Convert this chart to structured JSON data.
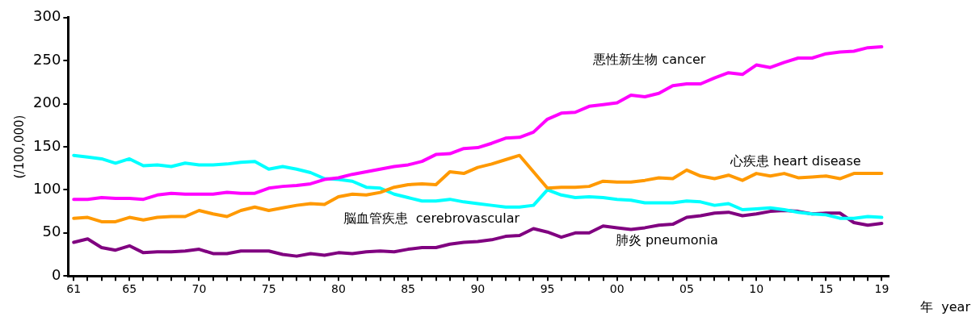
{
  "chart_data": {
    "type": "line",
    "xlabel": "年  year",
    "ylabel": "(/100,000)",
    "x": [
      1961,
      1962,
      1963,
      1964,
      1965,
      1966,
      1967,
      1968,
      1969,
      1970,
      1971,
      1972,
      1973,
      1974,
      1975,
      1976,
      1977,
      1978,
      1979,
      1980,
      1981,
      1982,
      1983,
      1984,
      1985,
      1986,
      1987,
      1988,
      1989,
      1990,
      1991,
      1992,
      1993,
      1994,
      1995,
      1996,
      1997,
      1998,
      1999,
      2000,
      2001,
      2002,
      2003,
      2004,
      2005,
      2006,
      2007,
      2008,
      2009,
      2010,
      2011,
      2012,
      2013,
      2014,
      2015,
      2016,
      2017,
      2018,
      2019
    ],
    "series": [
      {
        "name": "悪性新生物 cancer",
        "color": "#ff00ff",
        "values": [
          89,
          89,
          91,
          90,
          90,
          89,
          94,
          96,
          95,
          95,
          95,
          97,
          96,
          96,
          102,
          104,
          105,
          107,
          112,
          114,
          118,
          121,
          124,
          127,
          129,
          133,
          141,
          142,
          148,
          149,
          154,
          160,
          161,
          167,
          182,
          189,
          190,
          197,
          199,
          201,
          210,
          208,
          212,
          221,
          223,
          223,
          230,
          236,
          234,
          245,
          242,
          248,
          253,
          253,
          258,
          260,
          261,
          265,
          266
        ]
      },
      {
        "name": "心疾患 heart disease",
        "color": "#ff9900",
        "values": [
          67,
          68,
          63,
          63,
          68,
          65,
          68,
          69,
          69,
          76,
          72,
          69,
          76,
          80,
          76,
          79,
          82,
          84,
          83,
          92,
          95,
          94,
          97,
          103,
          106,
          107,
          106,
          121,
          119,
          126,
          130,
          135,
          140,
          121,
          102,
          103,
          103,
          104,
          110,
          109,
          109,
          111,
          114,
          113,
          123,
          116,
          113,
          117,
          111,
          119,
          116,
          119,
          114,
          115,
          116,
          113,
          119,
          119,
          119
        ]
      },
      {
        "name": "脳血管疾患  cerebrovascular",
        "color": "#00ffff",
        "values": [
          140,
          138,
          136,
          131,
          136,
          128,
          129,
          127,
          131,
          129,
          129,
          130,
          132,
          133,
          124,
          127,
          124,
          120,
          113,
          112,
          110,
          103,
          102,
          95,
          91,
          87,
          87,
          89,
          86,
          84,
          82,
          80,
          80,
          82,
          100,
          94,
          91,
          92,
          91,
          89,
          88,
          85,
          85,
          85,
          87,
          86,
          82,
          84,
          77,
          78,
          79,
          77,
          74,
          72,
          71,
          67,
          67,
          69,
          68
        ]
      },
      {
        "name": "肺炎 pneumonia",
        "color": "#800080",
        "values": [
          39,
          43,
          33,
          30,
          35,
          27,
          28,
          28,
          29,
          31,
          26,
          26,
          29,
          29,
          29,
          25,
          23,
          26,
          24,
          27,
          26,
          28,
          29,
          28,
          31,
          33,
          33,
          37,
          39,
          40,
          42,
          46,
          47,
          55,
          51,
          45,
          50,
          50,
          58,
          56,
          54,
          56,
          59,
          60,
          68,
          70,
          73,
          74,
          70,
          72,
          75,
          76,
          75,
          72,
          73,
          73,
          62,
          59,
          61
        ]
      }
    ],
    "xlim": [
      1960.6,
      2019.5
    ],
    "xticks": [
      {
        "value": 1961,
        "label": "61"
      },
      {
        "value": 1962,
        "label": null
      },
      {
        "value": 1963,
        "label": null
      },
      {
        "value": 1964,
        "label": null
      },
      {
        "value": 1965,
        "label": "65"
      },
      {
        "value": 1966,
        "label": null
      },
      {
        "value": 1967,
        "label": null
      },
      {
        "value": 1968,
        "label": null
      },
      {
        "value": 1969,
        "label": null
      },
      {
        "value": 1970,
        "label": "70"
      },
      {
        "value": 1971,
        "label": null
      },
      {
        "value": 1972,
        "label": null
      },
      {
        "value": 1973,
        "label": null
      },
      {
        "value": 1974,
        "label": null
      },
      {
        "value": 1975,
        "label": "75"
      },
      {
        "value": 1976,
        "label": null
      },
      {
        "value": 1977,
        "label": null
      },
      {
        "value": 1978,
        "label": null
      },
      {
        "value": 1979,
        "label": null
      },
      {
        "value": 1980,
        "label": "80"
      },
      {
        "value": 1981,
        "label": null
      },
      {
        "value": 1982,
        "label": null
      },
      {
        "value": 1983,
        "label": null
      },
      {
        "value": 1984,
        "label": null
      },
      {
        "value": 1985,
        "label": "85"
      },
      {
        "value": 1986,
        "label": null
      },
      {
        "value": 1987,
        "label": null
      },
      {
        "value": 1988,
        "label": null
      },
      {
        "value": 1989,
        "label": null
      },
      {
        "value": 1990,
        "label": "90"
      },
      {
        "value": 1991,
        "label": null
      },
      {
        "value": 1992,
        "label": null
      },
      {
        "value": 1993,
        "label": null
      },
      {
        "value": 1994,
        "label": null
      },
      {
        "value": 1995,
        "label": "95"
      },
      {
        "value": 1996,
        "label": null
      },
      {
        "value": 1997,
        "label": null
      },
      {
        "value": 1998,
        "label": null
      },
      {
        "value": 1999,
        "label": null
      },
      {
        "value": 2000,
        "label": "00"
      },
      {
        "value": 2001,
        "label": null
      },
      {
        "value": 2002,
        "label": null
      },
      {
        "value": 2003,
        "label": null
      },
      {
        "value": 2004,
        "label": null
      },
      {
        "value": 2005,
        "label": "05"
      },
      {
        "value": 2006,
        "label": null
      },
      {
        "value": 2007,
        "label": null
      },
      {
        "value": 2008,
        "label": null
      },
      {
        "value": 2009,
        "label": null
      },
      {
        "value": 2010,
        "label": "10"
      },
      {
        "value": 2011,
        "label": null
      },
      {
        "value": 2012,
        "label": null
      },
      {
        "value": 2013,
        "label": null
      },
      {
        "value": 2014,
        "label": null
      },
      {
        "value": 2015,
        "label": "15"
      },
      {
        "value": 2016,
        "label": null
      },
      {
        "value": 2017,
        "label": null
      },
      {
        "value": 2018,
        "label": null
      },
      {
        "value": 2019,
        "label": "19"
      }
    ],
    "ylim": [
      0,
      300
    ],
    "yticks": [
      0,
      50,
      100,
      150,
      200,
      250,
      300
    ],
    "grid": false,
    "legend": false,
    "marker": "none",
    "line_style": "solid"
  }
}
